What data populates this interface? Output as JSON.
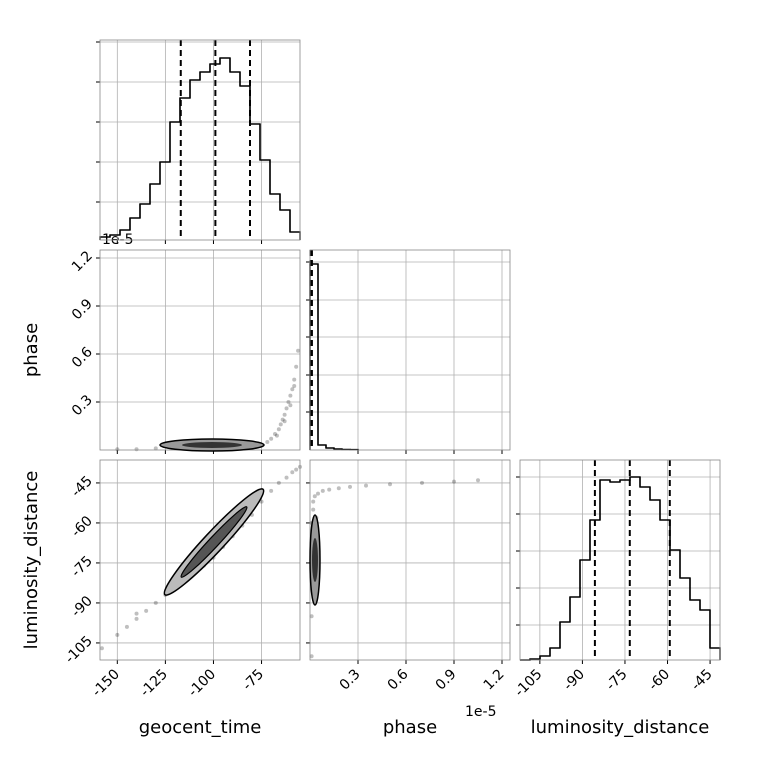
{
  "chart_data": {
    "type": "corner",
    "offset_label": "1e-5",
    "parameters": [
      {
        "label": "geocent_time",
        "lim": [
          -159,
          -55
        ],
        "ticks": [
          -150,
          -125,
          -100,
          -75
        ]
      },
      {
        "label": "phase",
        "lim": [
          0,
          1.25
        ],
        "ticks": [
          0.3,
          0.6,
          0.9,
          1.2
        ]
      },
      {
        "label": "luminosity_distance",
        "lim": [
          -112,
          -41.5
        ],
        "ylim": [
          -111.4,
          -36.4
        ],
        "ticks": [
          -105,
          -90,
          -75,
          -60,
          -45
        ]
      }
    ],
    "histograms": [
      {
        "bins": [
          -159,
          -153.8,
          -148.6,
          -143.4,
          -138.2,
          -133,
          -127.8,
          -122.6,
          -117.4,
          -112.2,
          -107,
          -101.8,
          -96.6,
          -91.4,
          -86.2,
          -81,
          -75.8,
          -70.6,
          -65.4,
          -60.2,
          -55
        ],
        "counts": [
          15,
          25,
          50,
          110,
          180,
          280,
          390,
          590,
          710,
          800,
          840,
          880,
          910,
          840,
          770,
          580,
          400,
          230,
          150,
          40
        ],
        "ylim": [
          0,
          1000
        ],
        "yticks": [
          190,
          390,
          590,
          790,
          990
        ],
        "quantiles": [
          -117,
          -99,
          -81
        ]
      },
      {
        "bins": [
          0,
          0.05,
          0.1,
          0.15,
          0.2,
          0.25,
          0.3
        ],
        "counts": [
          930,
          25,
          10,
          5,
          3,
          2
        ],
        "ylim": [
          0,
          1000
        ],
        "yticks": [
          190,
          375,
          565,
          750,
          940
        ],
        "quantiles": [
          0.003,
          0.006,
          0.012
        ]
      },
      {
        "bins": [
          -112,
          -108.475,
          -104.95,
          -101.425,
          -97.9,
          -94.375,
          -90.85,
          -87.325,
          -83.8,
          -80.275,
          -76.75,
          -73.225,
          -69.7,
          -66.175,
          -62.65,
          -59.125,
          -55.6,
          -52.075,
          -48.55,
          -45.025,
          -41.5
        ],
        "counts": [
          0,
          5,
          20,
          60,
          190,
          315,
          500,
          700,
          900,
          890,
          900,
          915,
          865,
          800,
          700,
          550,
          410,
          300,
          250,
          60
        ],
        "ylim": [
          0,
          1000
        ],
        "yticks": [
          175,
          360,
          545,
          730,
          915
        ],
        "quantiles": [
          -85.6,
          -73.3,
          -59.2
        ]
      }
    ],
    "scatter": [
      {
        "xparam": 0,
        "yparam": 1,
        "x": [
          -150,
          -140,
          -130,
          -120,
          -110,
          -100,
          -90,
          -80,
          -75,
          -72,
          -70,
          -68,
          -66,
          -65,
          -64,
          -63,
          -62,
          -61,
          -60,
          -59,
          -58,
          -57,
          -56,
          -58,
          -60,
          -63,
          -67
        ],
        "y": [
          0.005,
          0.005,
          0.01,
          0.01,
          0.01,
          0.01,
          0.015,
          0.02,
          0.03,
          0.05,
          0.07,
          0.1,
          0.13,
          0.16,
          0.19,
          0.22,
          0.26,
          0.3,
          0.34,
          0.38,
          0.44,
          0.52,
          0.62,
          0.4,
          0.28,
          0.18,
          0.09
        ]
      },
      {
        "xparam": 0,
        "yparam": 2,
        "x": [
          -158,
          -150,
          -145,
          -140,
          -135,
          -130,
          -125,
          -120,
          -115,
          -110,
          -105,
          -100,
          -95,
          -90,
          -85,
          -80,
          -75,
          -70,
          -66,
          -62,
          -59,
          -57,
          -55,
          -140,
          -120
        ],
        "y": [
          -107,
          -102,
          -99,
          -96,
          -93,
          -90,
          -87,
          -84,
          -81,
          -78,
          -76,
          -73,
          -69,
          -65,
          -61,
          -57,
          -52,
          -48,
          -45,
          -43,
          -41,
          -40,
          -39,
          -94,
          -82
        ]
      },
      {
        "xparam": 1,
        "yparam": 2,
        "x": [
          0.01,
          0.01,
          0.01,
          0.01,
          0.01,
          0.02,
          0.02,
          0.03,
          0.05,
          0.08,
          0.12,
          0.18,
          0.25,
          0.35,
          0.5,
          0.7,
          0.9,
          1.05,
          0.02,
          0.04
        ],
        "y": [
          -110,
          -95,
          -80,
          -70,
          -60,
          -55,
          -52,
          -50,
          -49,
          -48,
          -47.5,
          -47,
          -46.5,
          -46,
          -45.5,
          -45,
          -44.5,
          -44,
          -65,
          -58
        ]
      }
    ]
  }
}
